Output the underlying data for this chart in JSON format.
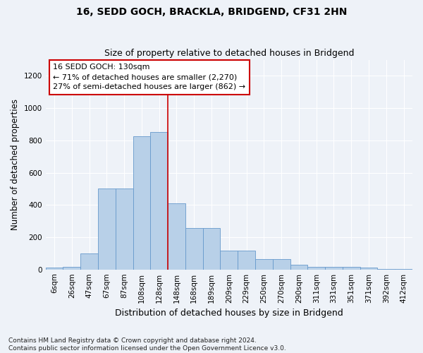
{
  "title": "16, SEDD GOCH, BRACKLA, BRIDGEND, CF31 2HN",
  "subtitle": "Size of property relative to detached houses in Bridgend",
  "xlabel": "Distribution of detached houses by size in Bridgend",
  "ylabel": "Number of detached properties",
  "bar_color": "#b8d0e8",
  "bar_edge_color": "#6699cc",
  "categories": [
    "6sqm",
    "26sqm",
    "47sqm",
    "67sqm",
    "87sqm",
    "108sqm",
    "128sqm",
    "148sqm",
    "168sqm",
    "189sqm",
    "209sqm",
    "229sqm",
    "250sqm",
    "270sqm",
    "290sqm",
    "311sqm",
    "331sqm",
    "351sqm",
    "371sqm",
    "392sqm",
    "412sqm"
  ],
  "bar_values": [
    10,
    15,
    100,
    500,
    500,
    825,
    850,
    410,
    255,
    255,
    115,
    115,
    65,
    65,
    30,
    15,
    15,
    15,
    10,
    5,
    2
  ],
  "ylim": [
    0,
    1300
  ],
  "yticks": [
    0,
    200,
    400,
    600,
    800,
    1000,
    1200
  ],
  "annotation_text": "16 SEDD GOCH: 130sqm\n← 71% of detached houses are smaller (2,270)\n27% of semi-detached houses are larger (862) →",
  "annotation_box_color": "#ffffff",
  "annotation_box_edge": "#cc0000",
  "vline_color": "#cc0000",
  "vline_x": 6.5,
  "footer_text": "Contains HM Land Registry data © Crown copyright and database right 2024.\nContains public sector information licensed under the Open Government Licence v3.0.",
  "background_color": "#eef2f8",
  "grid_color": "#ffffff",
  "title_fontsize": 10,
  "subtitle_fontsize": 9,
  "xlabel_fontsize": 9,
  "ylabel_fontsize": 8.5,
  "tick_fontsize": 7.5,
  "annotation_fontsize": 8,
  "footer_fontsize": 6.5
}
